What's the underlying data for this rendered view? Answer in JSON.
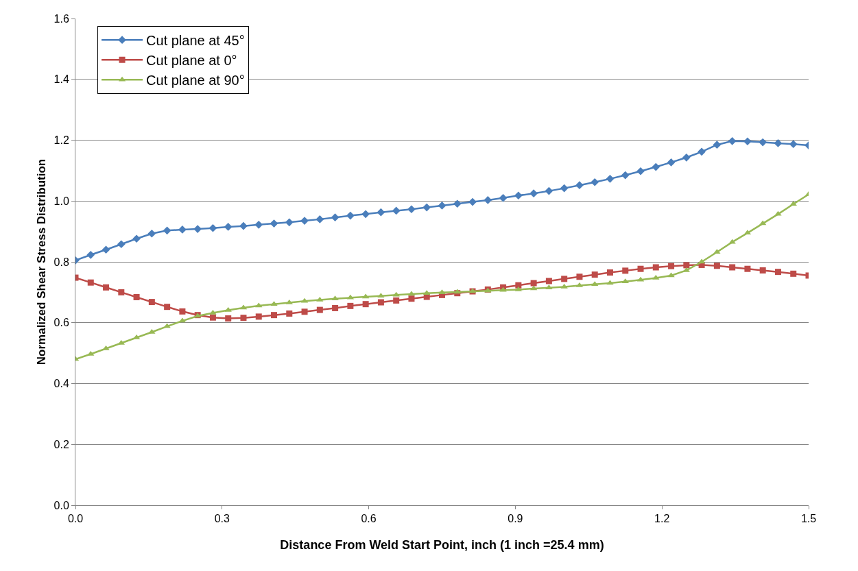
{
  "chart_data": {
    "type": "line",
    "xlabel": "Distance From Weld Start Point, inch (1 inch =25.4 mm)",
    "ylabel": "Normalized Shear Stress Distribution",
    "x": [
      0,
      0.03125,
      0.0625,
      0.09375,
      0.125,
      0.15625,
      0.1875,
      0.21875,
      0.25,
      0.28125,
      0.3125,
      0.34375,
      0.375,
      0.40625,
      0.4375,
      0.46875,
      0.5,
      0.53125,
      0.5625,
      0.59375,
      0.625,
      0.65625,
      0.6875,
      0.71875,
      0.75,
      0.78125,
      0.8125,
      0.84375,
      0.875,
      0.90625,
      0.9375,
      0.96875,
      1,
      1.03125,
      1.0625,
      1.09375,
      1.125,
      1.15625,
      1.1875,
      1.21875,
      1.25,
      1.28125,
      1.3125,
      1.34375,
      1.375,
      1.40625,
      1.4375,
      1.46875,
      1.5
    ],
    "series": [
      {
        "name": "Cut plane at 45°",
        "color": "#4a7ebb",
        "marker": "diamond",
        "values": [
          0.805,
          0.823,
          0.84,
          0.858,
          0.876,
          0.893,
          0.903,
          0.906,
          0.908,
          0.911,
          0.915,
          0.918,
          0.922,
          0.926,
          0.93,
          0.935,
          0.94,
          0.946,
          0.952,
          0.957,
          0.963,
          0.968,
          0.973,
          0.979,
          0.985,
          0.991,
          0.997,
          1.003,
          1.01,
          1.018,
          1.025,
          1.033,
          1.042,
          1.052,
          1.062,
          1.073,
          1.085,
          1.098,
          1.112,
          1.127,
          1.143,
          1.162,
          1.185,
          1.197,
          1.196,
          1.193,
          1.19,
          1.187,
          1.183
        ]
      },
      {
        "name": "Cut plane at 0°",
        "color": "#be4b48",
        "marker": "square",
        "values": [
          0.748,
          0.732,
          0.716,
          0.7,
          0.684,
          0.668,
          0.652,
          0.637,
          0.625,
          0.617,
          0.614,
          0.616,
          0.62,
          0.625,
          0.63,
          0.636,
          0.642,
          0.648,
          0.655,
          0.661,
          0.667,
          0.673,
          0.679,
          0.685,
          0.691,
          0.697,
          0.703,
          0.709,
          0.716,
          0.723,
          0.73,
          0.737,
          0.744,
          0.751,
          0.758,
          0.765,
          0.771,
          0.777,
          0.782,
          0.786,
          0.789,
          0.79,
          0.787,
          0.782,
          0.777,
          0.772,
          0.767,
          0.761,
          0.755
        ]
      },
      {
        "name": "Cut plane at 90°",
        "color": "#98b954",
        "marker": "triangle",
        "values": [
          0.48,
          0.497,
          0.515,
          0.533,
          0.551,
          0.569,
          0.588,
          0.606,
          0.622,
          0.632,
          0.641,
          0.649,
          0.656,
          0.661,
          0.666,
          0.671,
          0.675,
          0.679,
          0.682,
          0.685,
          0.688,
          0.691,
          0.694,
          0.697,
          0.699,
          0.701,
          0.703,
          0.705,
          0.707,
          0.709,
          0.712,
          0.715,
          0.718,
          0.722,
          0.726,
          0.73,
          0.735,
          0.741,
          0.747,
          0.755,
          0.772,
          0.8,
          0.832,
          0.865,
          0.895,
          0.926,
          0.957,
          0.99,
          1.022
        ]
      }
    ],
    "xlim": [
      0,
      1.5
    ],
    "xticks": [
      {
        "value": 0,
        "label": "0.0"
      },
      0.3,
      0.6,
      0.9,
      1.2,
      1.5
    ],
    "ylim": [
      0,
      1.6
    ],
    "yticks": [
      {
        "value": 0,
        "label": "0.0"
      },
      0.2,
      0.4,
      0.6,
      0.8,
      {
        "value": 1,
        "label": "1.0"
      },
      1.2,
      1.4,
      1.6
    ],
    "grid": "y",
    "legend": "top left",
    "line_style": "solid"
  }
}
